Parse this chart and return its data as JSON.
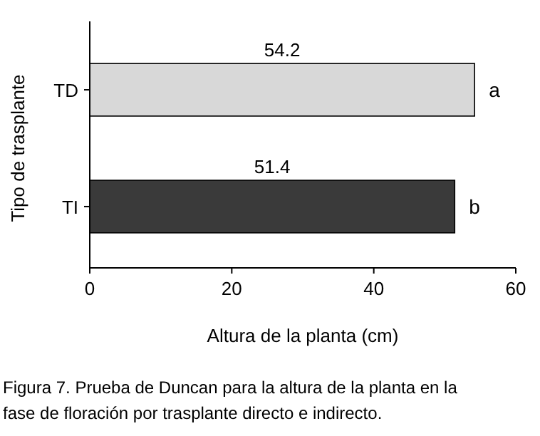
{
  "chart_data": {
    "type": "bar",
    "orientation": "horizontal",
    "categories": [
      "TD",
      "TI"
    ],
    "values": [
      54.2,
      51.4
    ],
    "colors": [
      "#d8d8d8",
      "#3a3a3a"
    ],
    "xlim": [
      0,
      60
    ],
    "xticks": [
      0,
      20,
      40,
      60
    ],
    "xlabel": "Altura de la planta (cm)",
    "ylabel": "Tipo de trasplante",
    "data_labels": true,
    "grid": false,
    "annotations": [
      {
        "text": "a",
        "x": 54.2,
        "y": "TD"
      },
      {
        "text": "b",
        "x": 51.4,
        "y": "TI"
      },
      "Figura 7. Prueba de Duncan para la altura de la planta en la fase de floración por trasplante directo e indirecto."
    ]
  }
}
